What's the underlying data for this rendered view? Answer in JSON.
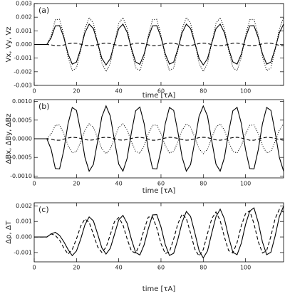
{
  "chart_data": [
    {
      "type": "line",
      "panel_label": "(a)",
      "xlabel": "time [τA]",
      "ylabel": "Vx, Vy, Vz",
      "xlim": [
        0,
        118
      ],
      "xticks": [
        0,
        20,
        40,
        60,
        80,
        100
      ],
      "ylim": [
        -0.003,
        0.003
      ],
      "yticks": [
        -0.003,
        -0.002,
        -0.001,
        {
          "value": 0,
          "label": "0.000"
        },
        0.001,
        0.002,
        0.003
      ],
      "x": [
        0,
        2,
        4,
        6,
        8,
        10,
        12,
        14,
        16,
        18,
        20,
        22,
        24,
        26,
        28,
        30,
        32,
        34,
        36,
        38,
        40,
        42,
        44,
        46,
        48,
        50,
        52,
        54,
        56,
        58,
        60,
        62,
        64,
        66,
        68,
        70,
        72,
        74,
        76,
        78,
        80,
        82,
        84,
        86,
        88,
        90,
        92,
        94,
        96,
        98,
        100,
        102,
        104,
        106,
        108,
        110,
        112,
        114,
        116,
        118
      ],
      "series": [
        {
          "color": "#000000",
          "dash": "solid",
          "values": [
            0,
            0,
            0,
            0,
            0.00048,
            0.00137,
            0.00138,
            0.00053,
            -0.00068,
            -0.00144,
            -0.00129,
            -0.00033,
            0.00086,
            0.00149,
            0.00117,
            0.00012,
            -0.00101,
            -0.0015,
            -0.00104,
            9e-05,
            0.00116,
            0.00149,
            0.00089,
            -0.00029,
            -0.00128,
            -0.00146,
            -0.00071,
            0.0005,
            0.00137,
            0.00138,
            0.00053,
            -0.00068,
            -0.00144,
            -0.00129,
            -0.00032,
            0.00086,
            0.00149,
            0.00117,
            0.00012,
            -0.00102,
            -0.0015,
            -0.00104,
            9e-05,
            0.00116,
            0.00149,
            0.00087,
            -0.0003,
            -0.00128,
            -0.00144,
            -0.00071,
            0.0005,
            0.00137,
            0.00138,
            0.00051,
            -0.00068,
            -0.00144,
            -0.00129,
            -0.00032,
            0.00086,
            0.00149
          ]
        },
        {
          "color": "#000000",
          "dash": "dotted",
          "values": [
            0,
            0,
            0,
            0,
            0.00064,
            0.00182,
            0.00184,
            0.0007,
            -0.0009,
            -0.00192,
            -0.00172,
            -0.00044,
            0.00114,
            0.00198,
            0.00156,
            0.00016,
            -0.00134,
            -0.002,
            -0.00138,
            0.00012,
            0.00154,
            0.00198,
            0.00118,
            -0.00038,
            -0.0017,
            -0.00194,
            -0.00094,
            0.00066,
            0.00182,
            0.00184,
            0.0007,
            -0.0009,
            -0.00192,
            -0.00172,
            -0.00042,
            0.00114,
            0.00198,
            0.00156,
            0.00016,
            -0.00136,
            -0.002,
            -0.00138,
            0.00012,
            0.00154,
            0.00198,
            0.00116,
            -0.0004,
            -0.0017,
            -0.00192,
            -0.00094,
            0.00066,
            0.00182,
            0.00184,
            0.00068,
            -0.0009,
            -0.00192,
            -0.00172,
            -0.00042,
            0.00114,
            0.00198
          ]
        },
        {
          "color": "#000000",
          "dash": "dashed",
          "values": [
            0,
            0,
            0,
            0,
            -3e-05,
            -9e-05,
            -9e-05,
            -4e-05,
            5e-05,
            0.0001,
            9e-05,
            2e-05,
            -6e-05,
            -0.0001,
            -8e-05,
            -1e-05,
            7e-05,
            0.0001,
            7e-05,
            -1e-05,
            -8e-05,
            -0.0001,
            -6e-05,
            2e-05,
            9e-05,
            0.0001,
            5e-05,
            -3e-05,
            -9e-05,
            -9e-05,
            -4e-05,
            5e-05,
            0.0001,
            9e-05,
            2e-05,
            -6e-05,
            -0.0001,
            -8e-05,
            -1e-05,
            7e-05,
            0.0001,
            7e-05,
            -1e-05,
            -8e-05,
            -0.0001,
            -6e-05,
            2e-05,
            9e-05,
            0.0001,
            5e-05,
            -3e-05,
            -9e-05,
            -9e-05,
            -3e-05,
            5e-05,
            0.0001,
            9e-05,
            2e-05,
            -6e-05,
            -0.0001
          ]
        }
      ]
    },
    {
      "type": "line",
      "panel_label": "(b)",
      "xlabel": "time [τA]",
      "ylabel": "ΔBx, ΔBy, ΔBz",
      "xlim": [
        0,
        118
      ],
      "xticks": [
        0,
        20,
        40,
        60,
        80,
        100
      ],
      "ylim": [
        -0.00105,
        0.00105
      ],
      "yticks": [
        {
          "value": -0.001,
          "label": "-0.0010"
        },
        -0.0005,
        {
          "value": 0,
          "label": "0.0000"
        },
        0.0005,
        {
          "value": 0.001,
          "label": "0.0010"
        }
      ],
      "x": [
        0,
        2,
        4,
        6,
        8,
        10,
        12,
        14,
        16,
        18,
        20,
        22,
        24,
        26,
        28,
        30,
        32,
        34,
        36,
        38,
        40,
        42,
        44,
        46,
        48,
        50,
        52,
        54,
        56,
        58,
        60,
        62,
        64,
        66,
        68,
        70,
        72,
        74,
        76,
        78,
        80,
        82,
        84,
        86,
        88,
        90,
        92,
        94,
        96,
        98,
        100,
        102,
        104,
        106,
        108,
        110,
        112,
        114,
        116,
        118
      ],
      "series": [
        {
          "color": "#000000",
          "dash": "solid",
          "values": [
            0,
            0,
            0,
            0,
            -0.00028,
            -0.0008,
            -0.00081,
            -0.00031,
            0.0004,
            0.00084,
            0.00076,
            0.00019,
            -0.0005,
            -0.00087,
            -0.00069,
            -7e-05,
            0.00059,
            0.00088,
            0.00061,
            -5e-05,
            -0.00068,
            -0.00087,
            -0.00052,
            0.00017,
            0.00075,
            0.00085,
            0.00041,
            -0.00029,
            -0.0008,
            -0.00081,
            -0.00031,
            0.0004,
            0.00084,
            0.00076,
            0.00018,
            -0.0005,
            -0.00087,
            -0.00069,
            -7e-05,
            0.0006,
            0.00088,
            0.00061,
            -5e-05,
            -0.00068,
            -0.00087,
            -0.00051,
            0.00018,
            0.00075,
            0.00084,
            0.00041,
            -0.00029,
            -0.0008,
            -0.00081,
            -0.0003,
            0.0004,
            0.00084,
            0.00076,
            0.00018,
            -0.0005,
            -0.00087
          ]
        },
        {
          "color": "#000000",
          "dash": "dotted",
          "values": [
            0,
            0,
            0,
            0,
            0.00013,
            0.00036,
            0.00037,
            0.00014,
            -0.00018,
            -0.00038,
            -0.00034,
            -9e-05,
            0.00023,
            0.0004,
            0.00031,
            3e-05,
            -0.00027,
            -0.0004,
            -0.00028,
            2e-05,
            0.00031,
            0.0004,
            0.00024,
            -8e-05,
            -0.00034,
            -0.00039,
            -0.00019,
            0.00013,
            0.00036,
            0.00037,
            0.00014,
            -0.00018,
            -0.00038,
            -0.00034,
            -8e-05,
            0.00023,
            0.0004,
            0.00031,
            3e-05,
            -0.00027,
            -0.0004,
            -0.00028,
            2e-05,
            0.00031,
            0.0004,
            0.00023,
            -8e-05,
            -0.00034,
            -0.00038,
            -0.00019,
            0.00013,
            0.00036,
            0.00037,
            0.00014,
            -0.00018,
            -0.00038,
            -0.00034,
            -8e-05,
            0.00023,
            0.0004
          ]
        },
        {
          "color": "#000000",
          "dash": "dashed",
          "values": [
            0,
            0,
            0,
            0,
            -1e-05,
            -4e-05,
            -4e-05,
            -1e-05,
            2e-05,
            4e-05,
            3e-05,
            1e-05,
            -2e-05,
            -4e-05,
            -3e-05,
            0,
            3e-05,
            4e-05,
            3e-05,
            0,
            -3e-05,
            -4e-05,
            -2e-05,
            1e-05,
            3e-05,
            4e-05,
            2e-05,
            -1e-05,
            -4e-05,
            -4e-05,
            -1e-05,
            2e-05,
            4e-05,
            3e-05,
            1e-05,
            -2e-05,
            -4e-05,
            -3e-05,
            0,
            3e-05,
            4e-05,
            3e-05,
            0,
            -3e-05,
            -4e-05,
            -2e-05,
            1e-05,
            3e-05,
            4e-05,
            2e-05,
            -1e-05,
            -4e-05,
            -4e-05,
            -1e-05,
            2e-05,
            4e-05,
            3e-05,
            1e-05,
            -2e-05,
            -4e-05
          ]
        }
      ]
    },
    {
      "type": "line",
      "panel_label": "(c)",
      "xlabel": "time [τA]",
      "ylabel": "Δρ, ΔT",
      "xlim": [
        0,
        118
      ],
      "xticks": [
        0,
        20,
        40,
        60,
        80,
        100
      ],
      "ylim": [
        -0.0016,
        0.0022
      ],
      "yticks": [
        -0.001,
        {
          "value": 0,
          "label": "0.000"
        },
        0.001,
        0.002
      ],
      "x": [
        0,
        2,
        4,
        6,
        8,
        10,
        12,
        14,
        16,
        18,
        20,
        22,
        24,
        26,
        28,
        30,
        32,
        34,
        36,
        38,
        40,
        42,
        44,
        46,
        48,
        50,
        52,
        54,
        56,
        58,
        60,
        62,
        64,
        66,
        68,
        70,
        72,
        74,
        76,
        78,
        80,
        82,
        84,
        86,
        88,
        90,
        92,
        94,
        96,
        98,
        100,
        102,
        104,
        106,
        108,
        110,
        112,
        114,
        116,
        118
      ],
      "series": [
        {
          "color": "#000000",
          "dash": "solid",
          "values": [
            0,
            0,
            0,
            0,
            0.0002,
            0.0003,
            0.0001,
            -0.0003,
            -0.0008,
            -0.0012,
            -0.0009,
            -0.00014,
            0.00078,
            0.00129,
            0.00104,
            0.0002,
            -0.0007,
            -0.0011,
            -0.00073,
            0.00017,
            0.0011,
            0.00139,
            0.00087,
            -0.00015,
            -0.001,
            -0.00116,
            -0.00051,
            0.00053,
            0.00142,
            0.00144,
            0.00064,
            -0.00048,
            -0.00119,
            -0.00105,
            -0.00014,
            0.00095,
            0.00164,
            0.00132,
            0.00027,
            -0.00087,
            -0.00135,
            -0.0009,
            0.00024,
            0.0013,
            0.00179,
            0.00117,
            0,
            -0.00098,
            -0.00114,
            -0.0004,
            0.0008,
            0.00167,
            0.00187,
            0.00094,
            -0.00032,
            -0.00114,
            -0.00098,
            6e-05,
            0.00131,
            0.00198
          ]
        },
        {
          "color": "#000000",
          "dash": "dashed",
          "values": [
            0,
            0,
            0,
            0,
            0.0002,
            0.0001,
            -0.0002,
            -0.0007,
            -0.0011,
            -0.0008,
            -0.00013,
            0.0007,
            0.00116,
            0.00094,
            0.00018,
            -0.00063,
            -0.00099,
            -0.00066,
            0.00015,
            0.00099,
            0.00125,
            0.00078,
            -0.00014,
            -0.0009,
            -0.00104,
            -0.00046,
            0.00048,
            0.00128,
            0.0013,
            0.00058,
            -0.00043,
            -0.00107,
            -0.00095,
            -0.00013,
            0.00086,
            0.00148,
            0.00119,
            0.00024,
            -0.00078,
            -0.00122,
            -0.00081,
            0.00022,
            0.00117,
            0.00161,
            0.00105,
            0,
            -0.00088,
            -0.00103,
            -0.00036,
            0.00072,
            0.0015,
            0.00168,
            0.00085,
            -0.00029,
            -0.00103,
            -0.00088,
            5e-05,
            0.00118,
            0.00178,
            0.0016
          ]
        }
      ]
    }
  ]
}
